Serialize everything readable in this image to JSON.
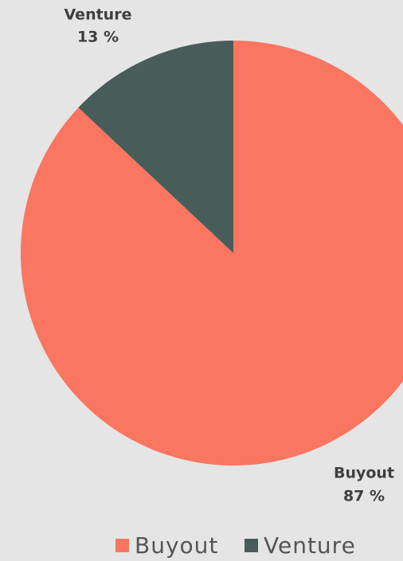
{
  "chart_data": {
    "type": "pie",
    "categories": [
      "Buyout",
      "Venture"
    ],
    "values": [
      87,
      13
    ],
    "value_labels": [
      "87 %",
      "13 %"
    ],
    "colors": [
      "#fa7660",
      "#485d5a"
    ],
    "legend": "bottom"
  }
}
